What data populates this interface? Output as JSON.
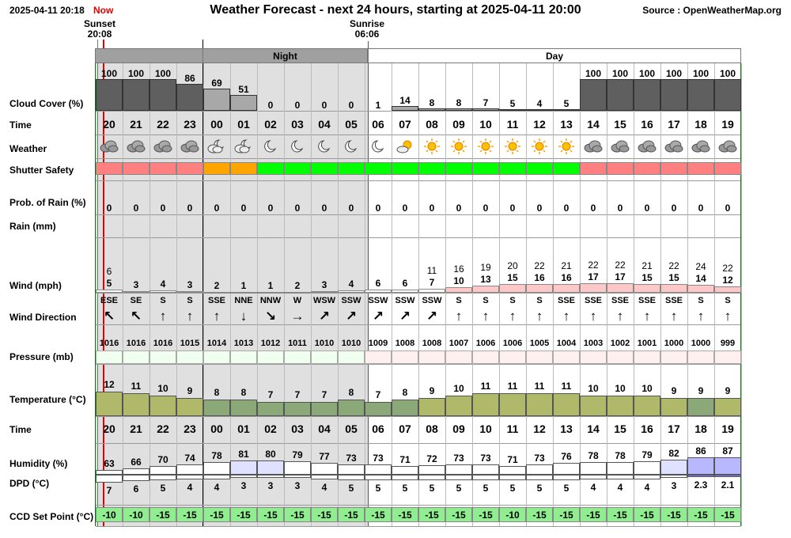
{
  "header": {
    "timestamp": "2025-04-11 20:18",
    "now_label": "Now",
    "title": "Weather Forecast - next 24 hours, starting at 2025-04-11 20:00",
    "source": "Source : OpenWeatherMap.org"
  },
  "sun": {
    "sunset_label": "Sunset",
    "sunset_time": "20:08",
    "sunrise_label": "Sunrise",
    "sunrise_time": "06:06"
  },
  "periods": {
    "night": "Night",
    "day": "Day"
  },
  "labels": {
    "cloud": "Cloud Cover (%)",
    "time": "Time",
    "weather": "Weather",
    "shutter": "Shutter Safety",
    "prob_rain": "Prob. of Rain (%)",
    "rain": "Rain (mm)",
    "wind": "Wind (mph)",
    "wind_dir": "Wind Direction",
    "pressure": "Pressure (mb)",
    "temperature": "Temperature (°C)",
    "time2": "Time",
    "humidity": "Humidity (%)",
    "dpd": "DPD (°C)",
    "ccd": "CCD Set Point (°C)"
  },
  "colors": {
    "night_bg": "#e0e0e0",
    "cloud_dark": "#5f5f5f",
    "cloud_light": "#a8a8a8",
    "shutter_red": "#ff8080",
    "shutter_orange": "#ffa500",
    "shutter_green": "#00ff00",
    "now_line": "#e00000",
    "grid_green": "#008000",
    "ccd_green": "#90ee90"
  },
  "hours": [
    "20",
    "21",
    "22",
    "23",
    "00",
    "01",
    "02",
    "03",
    "04",
    "05",
    "06",
    "07",
    "08",
    "09",
    "10",
    "11",
    "12",
    "13",
    "14",
    "15",
    "16",
    "17",
    "18",
    "19"
  ],
  "cloud": [
    "100",
    "100",
    "100",
    "86",
    "69",
    "51",
    "0",
    "0",
    "0",
    "0",
    "1",
    "14",
    "8",
    "8",
    "7",
    "5",
    "4",
    "5",
    "100",
    "100",
    "100",
    "100",
    "100",
    "100"
  ],
  "weather_icons": [
    "cloud-icon",
    "cloud-icon",
    "cloud-icon",
    "cloud-icon",
    "moon-cloud-icon",
    "moon-cloud-icon",
    "moon-icon",
    "moon-icon",
    "moon-icon",
    "moon-icon",
    "moon-icon",
    "sun-cloud-icon",
    "sun-icon",
    "sun-icon",
    "sun-icon",
    "sun-icon",
    "sun-icon",
    "sun-icon",
    "cloud-icon",
    "cloud-icon",
    "cloud-icon",
    "cloud-icon",
    "cloud-icon",
    "cloud-icon"
  ],
  "shutter_safety": [
    "unsafe",
    "unsafe",
    "unsafe",
    "unsafe",
    "marginal",
    "marginal",
    "safe",
    "safe",
    "safe",
    "safe",
    "safe",
    "safe",
    "safe",
    "safe",
    "safe",
    "safe",
    "safe",
    "safe",
    "unsafe",
    "unsafe",
    "unsafe",
    "unsafe",
    "unsafe",
    "unsafe"
  ],
  "prob_rain": [
    "0",
    "0",
    "0",
    "0",
    "0",
    "0",
    "0",
    "0",
    "0",
    "0",
    "0",
    "0",
    "0",
    "0",
    "0",
    "0",
    "0",
    "0",
    "0",
    "0",
    "0",
    "0",
    "0",
    "0"
  ],
  "wind_gust": [
    "6",
    "",
    "",
    "",
    "",
    "",
    "",
    "",
    "",
    "",
    "",
    "",
    "11",
    "16",
    "19",
    "20",
    "22",
    "21",
    "22",
    "22",
    "21",
    "22",
    "24",
    "22"
  ],
  "wind_speed": [
    "5",
    "3",
    "4",
    "3",
    "2",
    "1",
    "1",
    "2",
    "3",
    "4",
    "6",
    "6",
    "7",
    "10",
    "13",
    "15",
    "16",
    "16",
    "17",
    "17",
    "15",
    "15",
    "14",
    "12"
  ],
  "wind_dir": [
    "ESE",
    "SE",
    "S",
    "S",
    "SSE",
    "NNE",
    "NNW",
    "W",
    "WSW",
    "SSW",
    "SSW",
    "SSW",
    "SSW",
    "S",
    "S",
    "S",
    "S",
    "SSE",
    "SSE",
    "SSE",
    "SSE",
    "SSE",
    "S",
    "S"
  ],
  "wind_arrows": [
    "↖",
    "↖",
    "↑",
    "↑",
    "↑",
    "↓",
    "↘",
    "→",
    "↗",
    "↗",
    "↗",
    "↗",
    "↗",
    "↑",
    "↑",
    "↑",
    "↑",
    "↑",
    "↑",
    "↑",
    "↑",
    "↑",
    "↑",
    "↑"
  ],
  "pressure": [
    "1016",
    "1016",
    "1016",
    "1015",
    "1014",
    "1013",
    "1012",
    "1011",
    "1010",
    "1010",
    "1009",
    "1008",
    "1008",
    "1007",
    "1006",
    "1006",
    "1005",
    "1004",
    "1003",
    "1002",
    "1001",
    "1000",
    "1000",
    "999"
  ],
  "temperature": [
    "12",
    "11",
    "10",
    "9",
    "8",
    "8",
    "7",
    "7",
    "7",
    "8",
    "7",
    "8",
    "9",
    "10",
    "11",
    "11",
    "11",
    "11",
    "10",
    "10",
    "10",
    "9",
    "9",
    "9"
  ],
  "humidity": [
    "63",
    "66",
    "70",
    "74",
    "78",
    "81",
    "80",
    "79",
    "77",
    "73",
    "73",
    "71",
    "72",
    "73",
    "73",
    "71",
    "73",
    "76",
    "78",
    "78",
    "79",
    "82",
    "86",
    "87"
  ],
  "dpd": [
    "7",
    "6",
    "5",
    "4",
    "4",
    "3",
    "3",
    "3",
    "4",
    "5",
    "5",
    "5",
    "5",
    "5",
    "5",
    "5",
    "5",
    "5",
    "4",
    "4",
    "4",
    "3",
    "2.3",
    "2.1"
  ],
  "ccd": [
    "-10",
    "-10",
    "-15",
    "-15",
    "-15",
    "-15",
    "-15",
    "-15",
    "-15",
    "-15",
    "-15",
    "-15",
    "-15",
    "-15",
    "-15",
    "-10",
    "-15",
    "-15",
    "-15",
    "-15",
    "-15",
    "-15",
    "-15",
    "-15"
  ]
}
